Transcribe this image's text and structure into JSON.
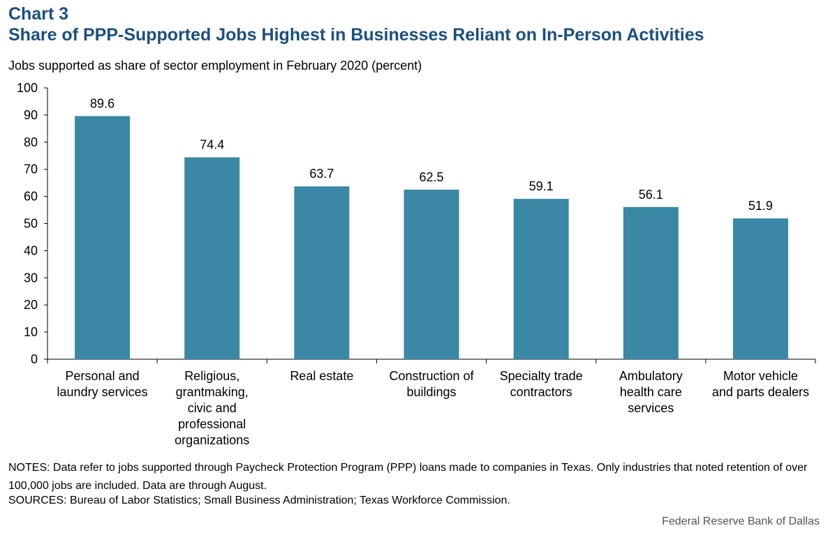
{
  "header": {
    "chart_label": "Chart 3",
    "title": "Share of PPP-Supported Jobs Highest in Businesses Reliant on In-Person Activities",
    "subtitle": "Jobs supported as share of sector employment in February 2020 (percent)"
  },
  "chart_data": {
    "type": "bar",
    "categories": [
      [
        "Personal and",
        "laundry services"
      ],
      [
        "Religious,",
        "grantmaking,",
        "civic and",
        "professional",
        "organizations"
      ],
      [
        "Real estate"
      ],
      [
        "Construction of",
        "buildings"
      ],
      [
        "Specialty trade",
        "contractors"
      ],
      [
        "Ambulatory",
        "health care",
        "services"
      ],
      [
        "Motor vehicle",
        "and parts dealers"
      ]
    ],
    "values": [
      89.6,
      74.4,
      63.7,
      62.5,
      59.1,
      56.1,
      51.9
    ],
    "value_labels": [
      "89.6",
      "74.4",
      "63.7",
      "62.5",
      "59.1",
      "56.1",
      "51.9"
    ],
    "ylim": [
      0,
      100
    ],
    "yticks": [
      0,
      10,
      20,
      30,
      40,
      50,
      60,
      70,
      80,
      90,
      100
    ],
    "ytick_labels": [
      "0",
      "10",
      "20",
      "30",
      "40",
      "50",
      "60",
      "70",
      "80",
      "90",
      "100"
    ],
    "grid": false,
    "bar_color": "#3a87a6",
    "title": "Share of PPP-Supported Jobs Highest in Businesses Reliant on In-Person Activities",
    "ylabel": "Jobs supported as share of sector employment in February 2020 (percent)"
  },
  "notes": {
    "notes_text": "NOTES: Data refer to jobs supported through Paycheck Protection Program (PPP) loans made to companies in Texas. Only industries that noted retention of over 100,000 jobs are included. Data are through August.",
    "sources_text": "SOURCES: Bureau of Labor Statistics; Small Business Administration;  Texas Workforce Commission."
  },
  "footer": {
    "credit": "Federal Reserve Bank of Dallas"
  },
  "colors": {
    "title": "#1b4f7f",
    "bar": "#3a87a6"
  }
}
